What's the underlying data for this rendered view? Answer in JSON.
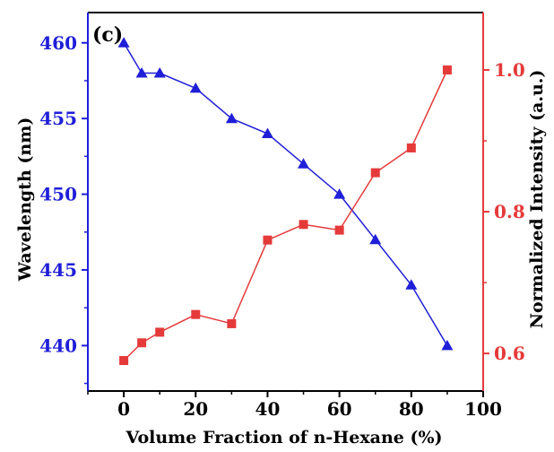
{
  "chart_data": {
    "type": "line",
    "panel_label": "(c)",
    "xlabel": "Volume Fraction of n-Hexane (%)",
    "ylabel_left": "Wavelength (nm)",
    "ylabel_right": "Normalized Intensity (a.u.)",
    "xlim": [
      -10,
      100
    ],
    "ylim_left": [
      437,
      462
    ],
    "ylim_right": [
      0.547,
      1.081
    ],
    "x_ticks": [
      0,
      20,
      40,
      60,
      80,
      100
    ],
    "y_ticks_left": [
      440,
      445,
      450,
      455,
      460
    ],
    "y_ticks_right": [
      0.6,
      0.8,
      1.0
    ],
    "x_tick_labels": [
      "0",
      "20",
      "40",
      "60",
      "80",
      "100"
    ],
    "y_tick_labels_left": [
      "440",
      "445",
      "450",
      "455",
      "460"
    ],
    "y_tick_labels_right": [
      "0.6",
      "0.8",
      "1.0"
    ],
    "grid": false,
    "series": [
      {
        "axis": "left",
        "marker": "triangle",
        "color": "#1f1fd8",
        "x": [
          0,
          5,
          10,
          20,
          30,
          40,
          50,
          60,
          70,
          80,
          90
        ],
        "y": [
          460,
          458,
          458,
          457,
          455,
          454,
          452,
          450,
          447,
          444,
          440
        ]
      },
      {
        "axis": "right",
        "marker": "square",
        "color": "#e53a3a",
        "x": [
          0,
          5,
          10,
          20,
          30,
          40,
          50,
          60,
          70,
          80,
          90
        ],
        "y": [
          0.59,
          0.615,
          0.63,
          0.655,
          0.642,
          0.76,
          0.782,
          0.774,
          0.855,
          0.89,
          1.0
        ]
      }
    ],
    "colors": {
      "left_axis": "#1f1fd8",
      "right_axis": "#e53a3a",
      "frame": "#000000"
    }
  }
}
